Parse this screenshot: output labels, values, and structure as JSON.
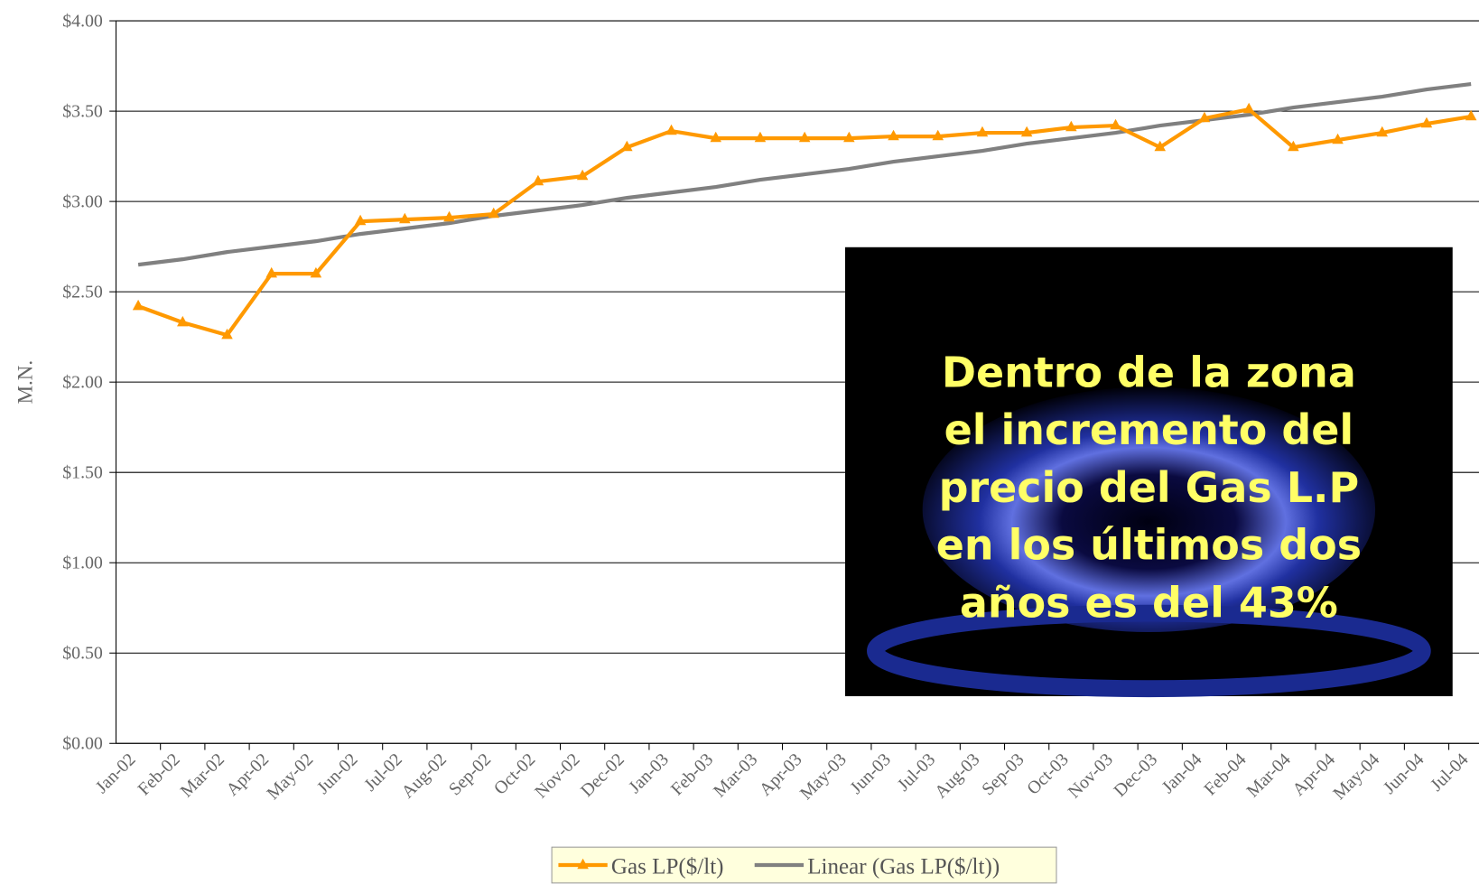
{
  "chart_data": {
    "type": "line",
    "y_label": "M.N.",
    "categories": [
      "Jan-02",
      "Feb-02",
      "Mar-02",
      "Apr-02",
      "May-02",
      "Jun-02",
      "Jul-02",
      "Aug-02",
      "Sep-02",
      "Oct-02",
      "Nov-02",
      "Dec-02",
      "Jan-03",
      "Feb-03",
      "Mar-03",
      "Apr-03",
      "May-03",
      "Jun-03",
      "Jul-03",
      "Aug-03",
      "Sep-03",
      "Oct-03",
      "Nov-03",
      "Dec-03",
      "Jan-04",
      "Feb-04",
      "Mar-04",
      "Apr-04",
      "May-04",
      "Jun-04",
      "Jul-04"
    ],
    "series": [
      {
        "name": "Gas LP($/lt)",
        "color": "#ff9900",
        "marker": "triangle",
        "values": [
          2.42,
          2.33,
          2.26,
          2.6,
          2.6,
          2.89,
          2.9,
          2.91,
          2.93,
          3.11,
          3.14,
          3.3,
          3.39,
          3.35,
          3.35,
          3.35,
          3.35,
          3.36,
          3.36,
          3.38,
          3.38,
          3.41,
          3.42,
          3.3,
          3.46,
          3.51,
          3.3,
          3.34,
          3.38,
          3.43,
          3.47
        ]
      },
      {
        "name": "Linear (Gas LP($/lt))",
        "color": "#808080",
        "values": [
          2.65,
          2.68,
          2.72,
          2.75,
          2.78,
          2.82,
          2.85,
          2.88,
          2.92,
          2.95,
          2.98,
          3.02,
          3.05,
          3.08,
          3.12,
          3.15,
          3.18,
          3.22,
          3.25,
          3.28,
          3.32,
          3.35,
          3.38,
          3.42,
          3.45,
          3.48,
          3.52,
          3.55,
          3.58,
          3.62,
          3.65
        ]
      }
    ],
    "ylim": [
      0,
      4
    ],
    "yticks": [
      {
        "value": 0,
        "label": "$0.00"
      },
      {
        "value": 0.5,
        "label": "$0.50"
      },
      {
        "value": 1,
        "label": "$1.00"
      },
      {
        "value": 1.5,
        "label": "$1.50"
      },
      {
        "value": 2,
        "label": "$2.00"
      },
      {
        "value": 2.5,
        "label": "$2.50"
      },
      {
        "value": 3,
        "label": "$3.00"
      },
      {
        "value": 3.5,
        "label": "$3.50"
      },
      {
        "value": 4,
        "label": "$4.00"
      }
    ],
    "grid": true,
    "annotation": [
      "Dentro de la zona",
      "el incremento del",
      "precio del Gas L.P",
      "en los últimos dos",
      "años es del 43%"
    ]
  }
}
